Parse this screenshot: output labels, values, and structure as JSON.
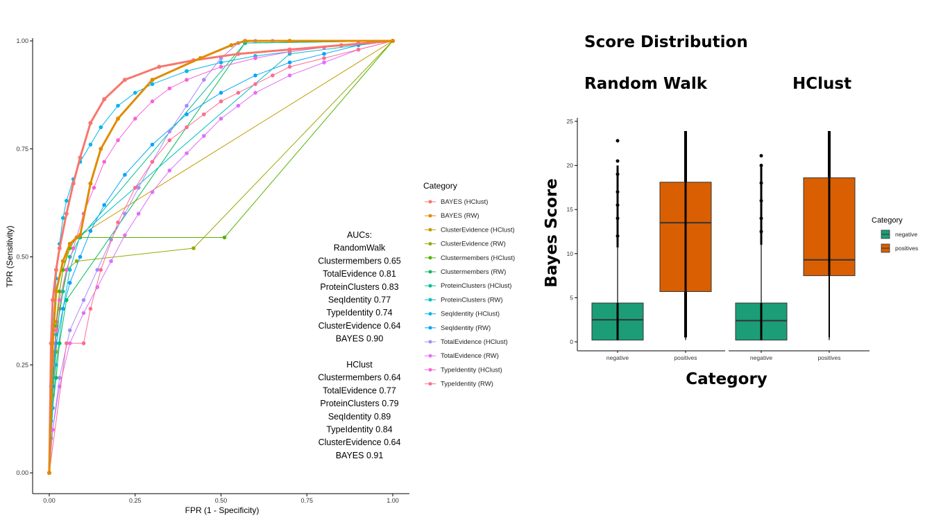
{
  "chart_data": [
    {
      "type": "line",
      "xlabel": "FPR (1 - Specificity)",
      "ylabel": "TPR (Sensitivity)",
      "xlim": [
        0,
        1
      ],
      "ylim": [
        0,
        1
      ],
      "x_ticks": [
        "0.00",
        "0.25",
        "0.50",
        "0.75",
        "1.00"
      ],
      "y_ticks": [
        "0.00",
        "0.25",
        "0.50",
        "0.75",
        "1.00"
      ],
      "grid": false,
      "legend_title": "Category",
      "legend_position": "right",
      "series": [
        {
          "name": "BAYES (HClust)",
          "color": "#F8766D",
          "bold": true,
          "x": [
            0,
            0.005,
            0.01,
            0.02,
            0.03,
            0.05,
            0.07,
            0.09,
            0.12,
            0.16,
            0.22,
            0.32,
            0.42,
            0.55,
            0.7,
            0.85,
            1.0
          ],
          "y": [
            0,
            0.3,
            0.4,
            0.47,
            0.52,
            0.6,
            0.67,
            0.73,
            0.81,
            0.865,
            0.91,
            0.94,
            0.955,
            0.97,
            0.98,
            0.99,
            1.0
          ]
        },
        {
          "name": "BAYES (RW)",
          "color": "#E08B00",
          "bold": true,
          "x": [
            0,
            0.01,
            0.02,
            0.04,
            0.06,
            0.08,
            0.09,
            0.12,
            0.15,
            0.2,
            0.3,
            0.44,
            0.53,
            0.57,
            0.7,
            1.0
          ],
          "y": [
            0,
            0.3,
            0.42,
            0.49,
            0.53,
            0.545,
            0.55,
            0.67,
            0.75,
            0.82,
            0.91,
            0.96,
            0.99,
            1.0,
            1.0,
            1.0
          ]
        },
        {
          "name": "ClusterEvidence (HClust)",
          "color": "#C49A00",
          "bold": false,
          "x": [
            0,
            0.005,
            0.01,
            0.015,
            0.02,
            0.03,
            0.04,
            0.06,
            0.08,
            1.0
          ],
          "y": [
            0,
            0.12,
            0.2,
            0.28,
            0.35,
            0.42,
            0.47,
            0.53,
            0.545,
            1.0
          ]
        },
        {
          "name": "ClusterEvidence (RW)",
          "color": "#99A800",
          "bold": false,
          "x": [
            0,
            0.005,
            0.01,
            0.02,
            0.03,
            0.05,
            0.08,
            0.42,
            1.0
          ],
          "y": [
            0,
            0.1,
            0.18,
            0.28,
            0.38,
            0.47,
            0.49,
            0.52,
            1.0
          ]
        },
        {
          "name": "Clustermembers (HClust)",
          "color": "#53B400",
          "bold": false,
          "x": [
            0,
            0.005,
            0.01,
            0.015,
            0.02,
            0.03,
            0.04,
            0.06,
            0.08,
            0.51,
            1.0
          ],
          "y": [
            0,
            0.1,
            0.2,
            0.28,
            0.34,
            0.42,
            0.47,
            0.52,
            0.545,
            0.545,
            1.0
          ]
        },
        {
          "name": "Clustermembers (RW)",
          "color": "#00BC56",
          "bold": false,
          "x": [
            0,
            0.005,
            0.01,
            0.02,
            0.03,
            0.05,
            0.57,
            1.0
          ],
          "y": [
            0,
            0.08,
            0.15,
            0.22,
            0.3,
            0.4,
            0.995,
            1.0
          ]
        },
        {
          "name": "ProteinClusters (HClust)",
          "color": "#00C094",
          "bold": false,
          "x": [
            0,
            0.005,
            0.01,
            0.02,
            0.04,
            0.06,
            0.09,
            0.57,
            1.0
          ],
          "y": [
            0,
            0.12,
            0.22,
            0.32,
            0.42,
            0.5,
            0.545,
            0.995,
            1.0
          ]
        },
        {
          "name": "ProteinClusters (RW)",
          "color": "#00BFC4",
          "bold": false,
          "x": [
            0,
            0.01,
            0.02,
            0.04,
            0.06,
            0.09,
            0.7,
            1.0
          ],
          "y": [
            0,
            0.15,
            0.25,
            0.38,
            0.47,
            0.55,
            0.97,
            1.0
          ]
        },
        {
          "name": "SeqIdentity (HClust)",
          "color": "#00B6EB",
          "bold": false,
          "x": [
            0,
            0.005,
            0.01,
            0.02,
            0.03,
            0.04,
            0.05,
            0.07,
            0.09,
            0.12,
            0.15,
            0.2,
            0.25,
            0.3,
            0.4,
            0.5,
            0.6,
            0.7,
            0.8,
            0.9,
            1.0
          ],
          "y": [
            0,
            0.2,
            0.33,
            0.45,
            0.53,
            0.59,
            0.63,
            0.68,
            0.72,
            0.76,
            0.8,
            0.85,
            0.88,
            0.9,
            0.93,
            0.95,
            0.965,
            0.975,
            0.985,
            0.993,
            1.0
          ]
        },
        {
          "name": "SeqIdentity (RW)",
          "color": "#06A4FF",
          "bold": false,
          "x": [
            0,
            0.005,
            0.01,
            0.02,
            0.04,
            0.06,
            0.09,
            0.12,
            0.16,
            0.22,
            0.3,
            0.4,
            0.5,
            0.6,
            0.7,
            0.8,
            0.9,
            1.0
          ],
          "y": [
            0,
            0.12,
            0.2,
            0.3,
            0.38,
            0.44,
            0.5,
            0.56,
            0.62,
            0.69,
            0.76,
            0.83,
            0.88,
            0.92,
            0.95,
            0.97,
            0.99,
            1.0
          ]
        },
        {
          "name": "TotalEvidence (HClust)",
          "color": "#A58AFF",
          "bold": false,
          "x": [
            0,
            0.01,
            0.03,
            0.06,
            0.1,
            0.14,
            0.18,
            0.22,
            0.26,
            0.3,
            0.35,
            0.4,
            0.45,
            0.5,
            0.55,
            0.6,
            0.65,
            1.0
          ],
          "y": [
            0,
            0.1,
            0.22,
            0.33,
            0.4,
            0.47,
            0.54,
            0.6,
            0.66,
            0.72,
            0.79,
            0.85,
            0.91,
            0.96,
            0.995,
            1.0,
            1.0,
            1.0
          ]
        },
        {
          "name": "TotalEvidence (RW)",
          "color": "#DF70F8",
          "bold": false,
          "x": [
            0,
            0.01,
            0.03,
            0.06,
            0.1,
            0.14,
            0.18,
            0.22,
            0.26,
            0.3,
            0.35,
            0.4,
            0.45,
            0.5,
            0.55,
            0.6,
            0.7,
            0.8,
            0.9,
            1.0
          ],
          "y": [
            0,
            0.1,
            0.2,
            0.3,
            0.37,
            0.43,
            0.49,
            0.55,
            0.6,
            0.65,
            0.7,
            0.74,
            0.78,
            0.82,
            0.85,
            0.88,
            0.92,
            0.95,
            0.98,
            1.0
          ]
        },
        {
          "name": "TypeIdentity (HClust)",
          "color": "#FB61D7",
          "bold": false,
          "x": [
            0,
            0.005,
            0.01,
            0.02,
            0.03,
            0.05,
            0.07,
            0.1,
            0.13,
            0.16,
            0.2,
            0.25,
            0.3,
            0.35,
            0.4,
            0.5,
            0.6,
            0.7,
            0.8,
            0.9,
            1.0
          ],
          "y": [
            0,
            0.15,
            0.25,
            0.33,
            0.4,
            0.47,
            0.52,
            0.6,
            0.66,
            0.72,
            0.77,
            0.82,
            0.86,
            0.89,
            0.91,
            0.94,
            0.96,
            0.975,
            0.985,
            0.995,
            1.0
          ]
        },
        {
          "name": "TypeIdentity (RW)",
          "color": "#FF6C91",
          "bold": false,
          "x": [
            0,
            0.05,
            0.1,
            0.12,
            0.15,
            0.2,
            0.25,
            0.3,
            0.35,
            0.4,
            0.45,
            0.5,
            0.55,
            0.6,
            0.65,
            0.7,
            0.8,
            0.9,
            1.0
          ],
          "y": [
            0,
            0.3,
            0.3,
            0.38,
            0.47,
            0.58,
            0.66,
            0.72,
            0.77,
            0.8,
            0.83,
            0.86,
            0.88,
            0.9,
            0.92,
            0.94,
            0.96,
            0.98,
            1.0
          ]
        }
      ]
    },
    {
      "type": "box",
      "title": "Score Distribution",
      "xlabel": "Category",
      "ylabel": "Bayes Score",
      "ylim": [
        0,
        25
      ],
      "y_ticks": [
        "0",
        "5",
        "10",
        "15",
        "20",
        "25"
      ],
      "legend_title": "Category",
      "legend_position": "right",
      "legend": [
        {
          "name": "negative",
          "color": "#1B9E77"
        },
        {
          "name": "positives",
          "color": "#D95F02"
        }
      ],
      "panels": [
        {
          "title": "Random Walk",
          "boxes": [
            {
              "category": "negative",
              "color": "#1B9E77",
              "q1": 0.2,
              "median": 2.5,
              "q3": 4.4,
              "whisker_low": 0.2,
              "whisker_high": 10.7,
              "outliers_high": [
                12,
                14,
                15.5,
                17,
                19,
                20.5,
                22.8
              ]
            },
            {
              "category": "positives",
              "color": "#D95F02",
              "q1": 5.7,
              "median": 13.5,
              "q3": 18.1,
              "whisker_low": 0.2,
              "whisker_high": 23.9,
              "outliers_low": []
            }
          ]
        },
        {
          "title": "HClust",
          "boxes": [
            {
              "category": "negative",
              "color": "#1B9E77",
              "q1": 0.2,
              "median": 2.4,
              "q3": 4.4,
              "whisker_low": 0.2,
              "whisker_high": 11,
              "outliers_high": [
                12.5,
                14,
                16,
                18,
                20,
                21.1
              ]
            },
            {
              "category": "positives",
              "color": "#D95F02",
              "q1": 7.5,
              "median": 9.3,
              "q3": 18.6,
              "whisker_low": 0.2,
              "whisker_high": 23.9,
              "outliers_low": []
            }
          ]
        }
      ]
    }
  ],
  "auc_annotation": [
    "AUCs:",
    "RandomWalk",
    "Clustermembers  0.65",
    "TotalEvidence 0.81",
    "ProteinClusters 0.83",
    "SeqIdentity 0.77",
    "TypeIdentity 0.74",
    "ClusterEvidence 0.64",
    "BAYES 0.90",
    "",
    "HClust",
    "Clustermembers 0.64",
    "TotalEvidence 0.77",
    "ProteinClusters 0.79",
    "SeqIdentity 0.89",
    "TypeIdentity 0.84",
    "ClusterEvidence 0.64",
    "BAYES 0.91"
  ]
}
